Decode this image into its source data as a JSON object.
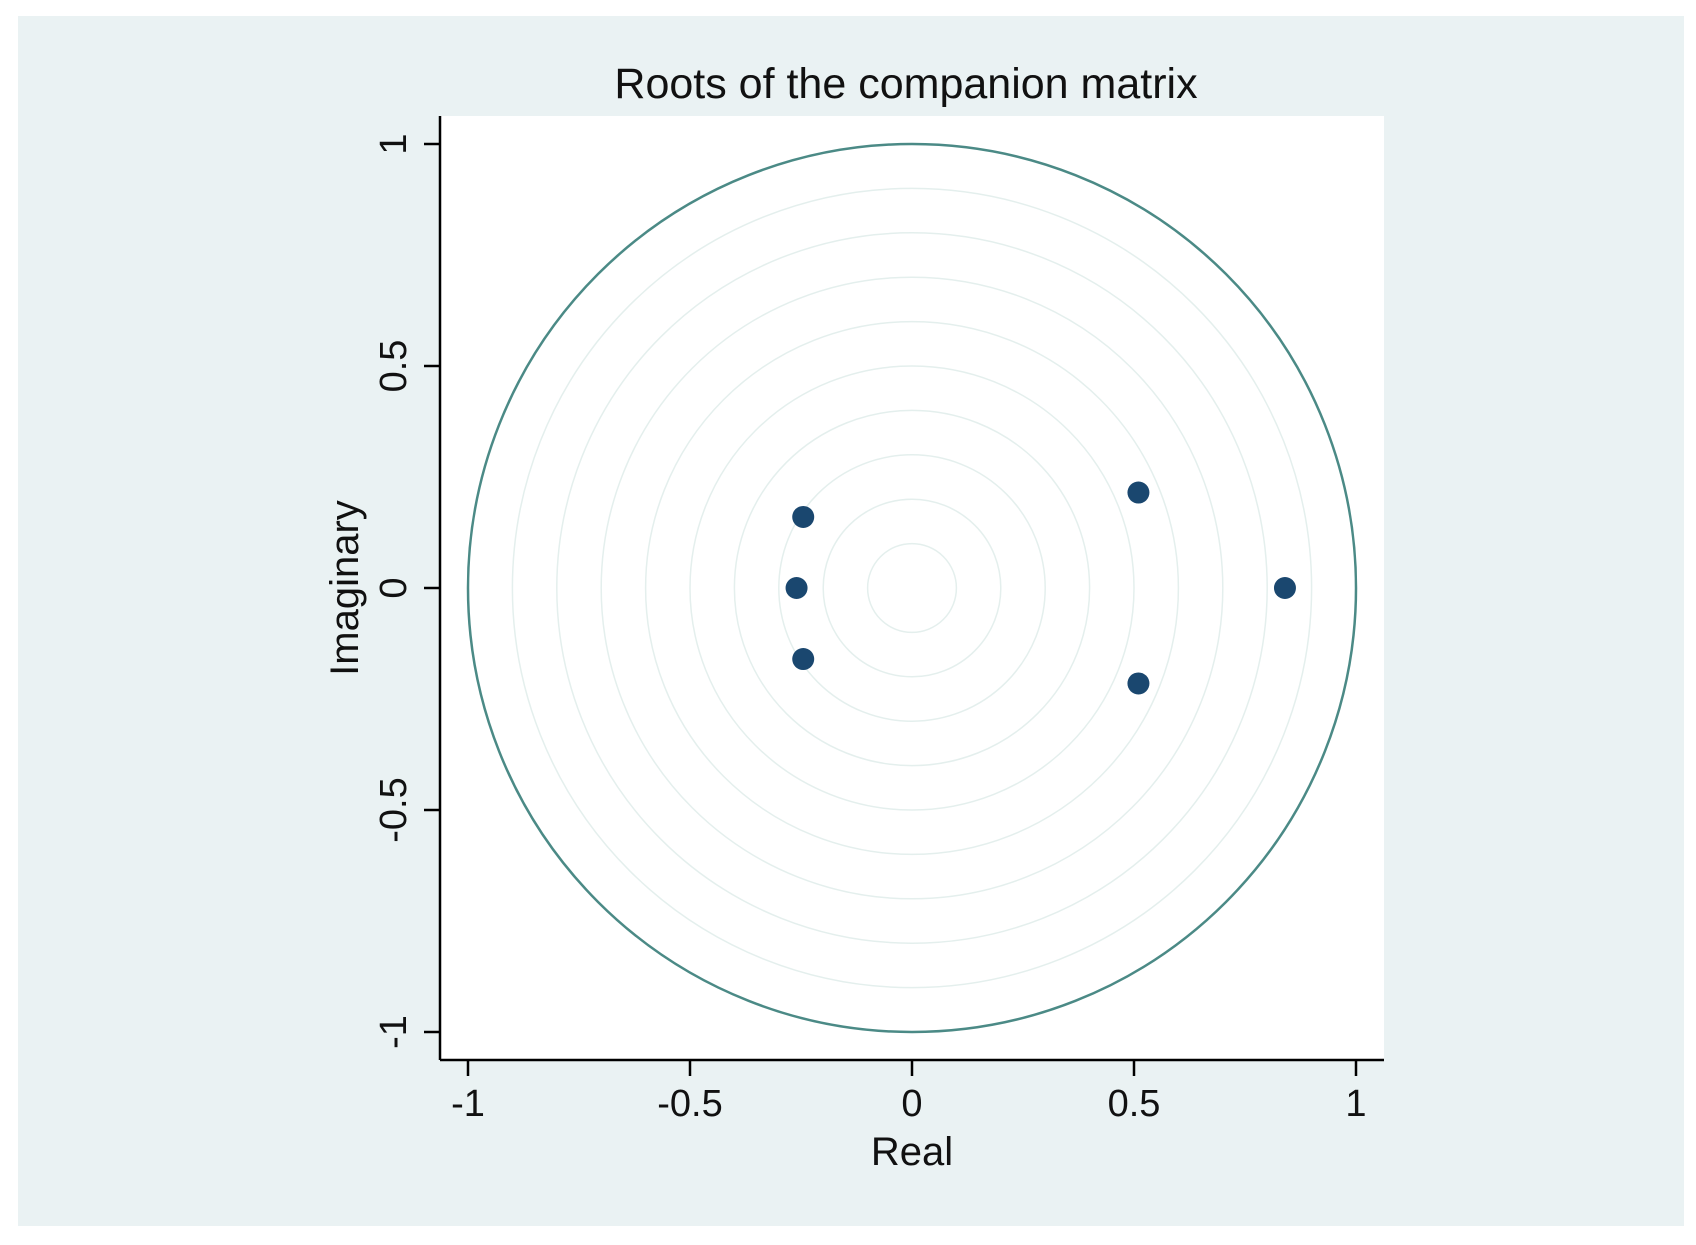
{
  "chart_data": {
    "type": "scatter",
    "title": "Roots of the companion matrix",
    "xlabel": "Real",
    "ylabel": "Imaginary",
    "xlim": [
      -1,
      1
    ],
    "ylim": [
      -1,
      1
    ],
    "x_ticks": [
      -1,
      -0.5,
      0,
      0.5,
      1
    ],
    "y_ticks": [
      -1,
      -0.5,
      0,
      0.5,
      1
    ],
    "x_tick_labels": [
      "-1",
      "-0.5",
      "0",
      "0.5",
      "1"
    ],
    "y_tick_labels": [
      "-1",
      "-0.5",
      "0",
      "0.5",
      "1"
    ],
    "unit_circle": true,
    "reference_circle_radii": [
      0.1,
      0.2,
      0.3,
      0.4,
      0.5,
      0.6,
      0.7,
      0.8,
      0.9
    ],
    "grid": false,
    "points": [
      {
        "x": 0.84,
        "y": 0.0
      },
      {
        "x": 0.51,
        "y": 0.215
      },
      {
        "x": 0.51,
        "y": -0.215
      },
      {
        "x": -0.245,
        "y": 0.16
      },
      {
        "x": -0.245,
        "y": -0.16
      },
      {
        "x": -0.26,
        "y": 0.0
      }
    ],
    "colors": {
      "background": "#eaf2f3",
      "plot_area": "#ffffff",
      "unit_circle": "#4b8a86",
      "reference_circles": "#e4efed",
      "points": "#1a476f",
      "axis": "#000000"
    }
  }
}
